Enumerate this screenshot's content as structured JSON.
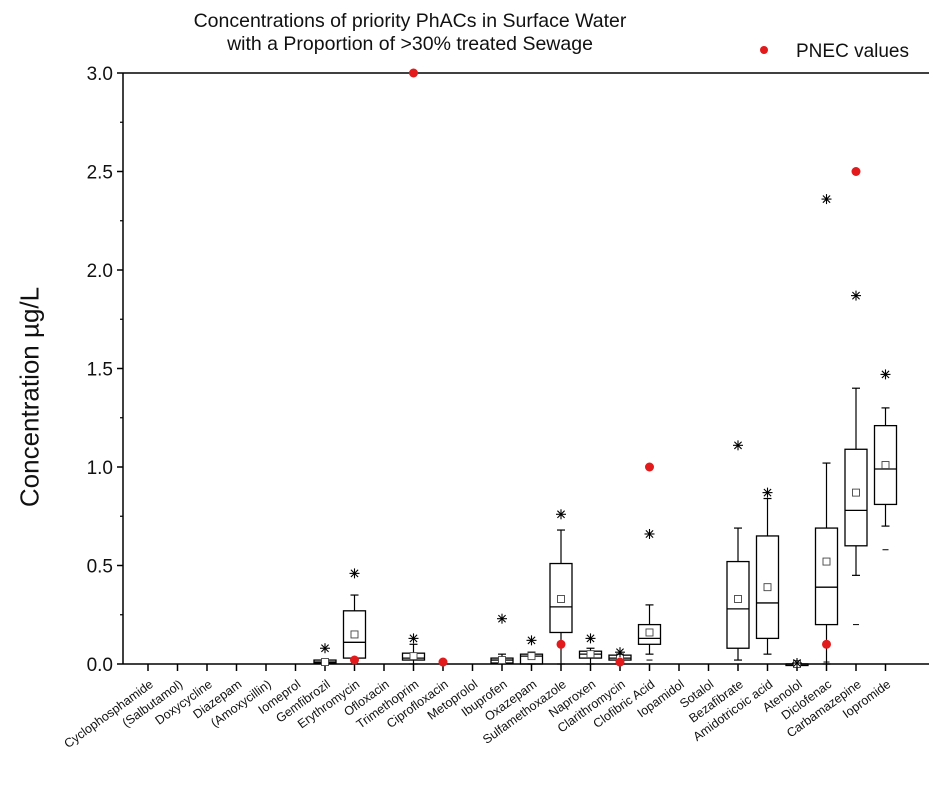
{
  "chart_data": {
    "type": "box",
    "title": "Concentrations of priority PhACs in Surface Water",
    "subtitle": "with a Proportion of >30% treated Sewage",
    "ylabel": "Concentration µg/L",
    "xlabel": "",
    "ylim": [
      0,
      3.0
    ],
    "yticks": [
      "0.0",
      "0.5",
      "1.0",
      "1.5",
      "2.0",
      "2.5",
      "3.0"
    ],
    "legend": {
      "label": "PNEC values",
      "placement": "top-right",
      "marker_color": "#e31a1c"
    },
    "categories": [
      "Cyclophosphamide",
      "(Salbutamol)",
      "Doxycycline",
      "Diazepam",
      "(Amoxycillin)",
      "Iomeprol",
      "Gemfibrozil",
      "Erythromycin",
      "Ofloxacin",
      "Trimethoprim",
      "Ciprofloxacin",
      "Metoprolol",
      "Ibuprofen",
      "Oxazepam",
      "Sulfamethoxazole",
      "Naproxen",
      "Clarithromycin",
      "Clofibric Acid",
      "Iopamidol",
      "Sotalol",
      "Bezafibrate",
      "Amidotricoic acid",
      "Atenolol",
      "Diclofenac",
      "Carbamazepine",
      "Iopromide"
    ],
    "boxes": [
      {
        "category": "Gemfibrozil",
        "whislo": 0.0,
        "q1": 0.005,
        "med": 0.01,
        "q3": 0.02,
        "whishi": 0.02,
        "mean": 0.01,
        "outliers": [
          0.08
        ]
      },
      {
        "category": "Erythromycin",
        "whislo": 0.0,
        "q1": 0.03,
        "med": 0.11,
        "q3": 0.27,
        "whishi": 0.35,
        "mean": 0.15,
        "outliers": [
          0.46
        ]
      },
      {
        "category": "Trimethoprim",
        "whislo": 0.0,
        "q1": 0.02,
        "med": 0.03,
        "q3": 0.055,
        "whishi": 0.1,
        "mean": 0.04,
        "outliers": [
          0.13
        ]
      },
      {
        "category": "Ibuprofen",
        "whislo": 0.0,
        "q1": 0.005,
        "med": 0.02,
        "q3": 0.03,
        "whishi": 0.05,
        "mean": 0.02,
        "outliers": [
          0.23
        ]
      },
      {
        "category": "Oxazepam",
        "whislo": 0.0,
        "q1": 0.0,
        "med": 0.04,
        "q3": 0.05,
        "whishi": 0.06,
        "mean": 0.04,
        "outliers": [
          0.12
        ]
      },
      {
        "category": "Sulfamethoxazole",
        "whislo": 0.0,
        "q1": 0.16,
        "med": 0.29,
        "q3": 0.51,
        "whishi": 0.68,
        "mean": 0.33,
        "outliers": [
          0.76
        ]
      },
      {
        "category": "Naproxen",
        "whislo": 0.0,
        "q1": 0.03,
        "med": 0.05,
        "q3": 0.065,
        "whishi": 0.08,
        "mean": 0.05,
        "outliers": [
          0.13
        ]
      },
      {
        "category": "Clarithromycin",
        "whislo": 0.0,
        "q1": 0.02,
        "med": 0.03,
        "q3": 0.045,
        "whishi": 0.05,
        "mean": 0.03,
        "outliers": [
          0.06
        ]
      },
      {
        "category": "Clofibric Acid",
        "whislo": 0.05,
        "q1": 0.1,
        "med": 0.13,
        "q3": 0.2,
        "whishi": 0.3,
        "mean": 0.16,
        "outliers": [
          0.66,
          0.02
        ]
      },
      {
        "category": "Bezafibrate",
        "whislo": 0.02,
        "q1": 0.08,
        "med": 0.28,
        "q3": 0.52,
        "whishi": 0.69,
        "mean": 0.33,
        "outliers": [
          1.11
        ]
      },
      {
        "category": "Amidotricoic acid",
        "whislo": 0.05,
        "q1": 0.13,
        "med": 0.31,
        "q3": 0.65,
        "whishi": 0.84,
        "mean": 0.39,
        "outliers": [
          0.87
        ]
      },
      {
        "category": "Atenolol",
        "whislo": 0.0,
        "q1": 0.0,
        "med": 0.0,
        "q3": 0.0,
        "whishi": 0.0,
        "mean": 0.0,
        "outliers": [
          0.005
        ]
      },
      {
        "category": "Diclofenac",
        "whislo": 0.0,
        "q1": 0.2,
        "med": 0.39,
        "q3": 0.69,
        "whishi": 1.02,
        "mean": 0.52,
        "outliers": [
          2.36,
          0.01
        ]
      },
      {
        "category": "Carbamazepine",
        "whislo": 0.45,
        "q1": 0.6,
        "med": 0.78,
        "q3": 1.09,
        "whishi": 1.4,
        "mean": 0.87,
        "outliers": [
          1.87,
          0.2
        ]
      },
      {
        "category": "Iopromide",
        "whislo": 0.7,
        "q1": 0.81,
        "med": 0.99,
        "q3": 1.21,
        "whishi": 1.3,
        "mean": 1.01,
        "outliers": [
          1.47,
          0.58
        ]
      }
    ],
    "pnec": [
      {
        "category": "Erythromycin",
        "value": 0.02
      },
      {
        "category": "Trimethoprim",
        "value": 3.0
      },
      {
        "category": "Ciprofloxacin",
        "value": 0.01
      },
      {
        "category": "Sulfamethoxazole",
        "value": 0.1
      },
      {
        "category": "Clarithromycin",
        "value": 0.01
      },
      {
        "category": "Clofibric Acid",
        "value": 1.0
      },
      {
        "category": "Diclofenac",
        "value": 0.1
      },
      {
        "category": "Carbamazepine",
        "value": 2.5
      }
    ]
  }
}
